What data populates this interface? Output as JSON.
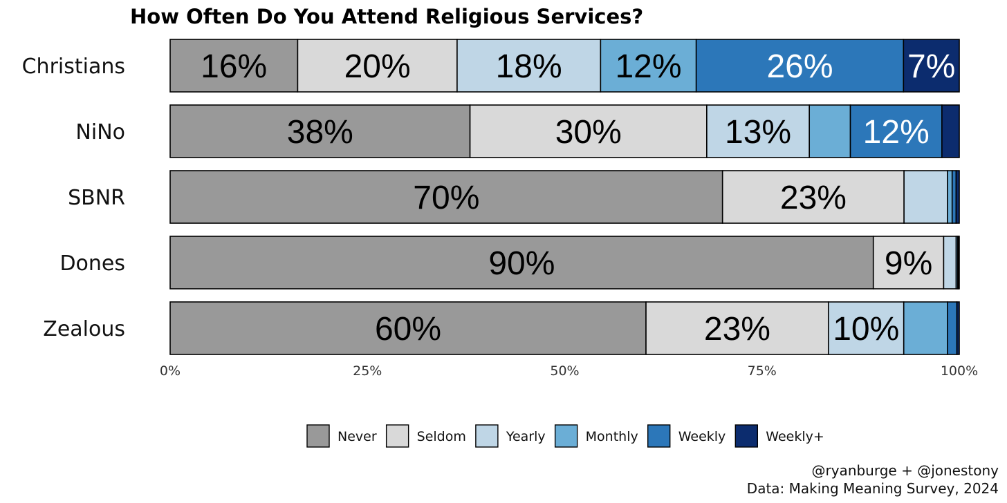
{
  "chart_data": {
    "type": "bar",
    "orientation": "horizontal",
    "stacked": true,
    "title": "How Often Do You Attend Religious Services?",
    "categories": [
      "Christians",
      "NiNo",
      "SBNR",
      "Dones",
      "Zealous"
    ],
    "series": [
      {
        "name": "Never",
        "color": "#999999",
        "values": [
          16,
          38,
          70,
          90,
          60
        ]
      },
      {
        "name": "Seldom",
        "color": "#d9d9d9",
        "values": [
          20,
          30,
          23,
          9,
          23
        ]
      },
      {
        "name": "Yearly",
        "color": "#bfd6e6",
        "values": [
          18,
          13,
          5.5,
          1.6,
          9.5
        ]
      },
      {
        "name": "Monthly",
        "color": "#6baed6",
        "values": [
          12,
          5.2,
          0.6,
          0.2,
          5.5
        ]
      },
      {
        "name": "Weekly",
        "color": "#2c77b9",
        "values": [
          26,
          11.6,
          0.5,
          0.1,
          1.2
        ]
      },
      {
        "name": "Weekly+",
        "color": "#0c2c6e",
        "values": [
          7,
          2.2,
          0.4,
          0.1,
          0.3
        ]
      }
    ],
    "data_labels": [
      [
        "16%",
        "20%",
        "18%",
        "12%",
        "26%",
        "7%"
      ],
      [
        "38%",
        "30%",
        "13%",
        "",
        "12%",
        ""
      ],
      [
        "70%",
        "23%",
        "",
        "",
        "",
        ""
      ],
      [
        "90%",
        "9%",
        "",
        "",
        "",
        ""
      ],
      [
        "60%",
        "23%",
        "10%",
        "",
        "",
        ""
      ]
    ],
    "label_colors": [
      "#000000",
      "#000000",
      "#000000",
      "#000000",
      "#ffffff",
      "#ffffff"
    ],
    "xlim": [
      0,
      100
    ],
    "xticks": [
      "0%",
      "25%",
      "50%",
      "75%",
      "100%"
    ],
    "legend_position": "bottom",
    "grid": false
  },
  "captions": {
    "line1": "@ryanburge + @jonestony",
    "line2": "Data: Making Meaning Survey, 2024"
  }
}
